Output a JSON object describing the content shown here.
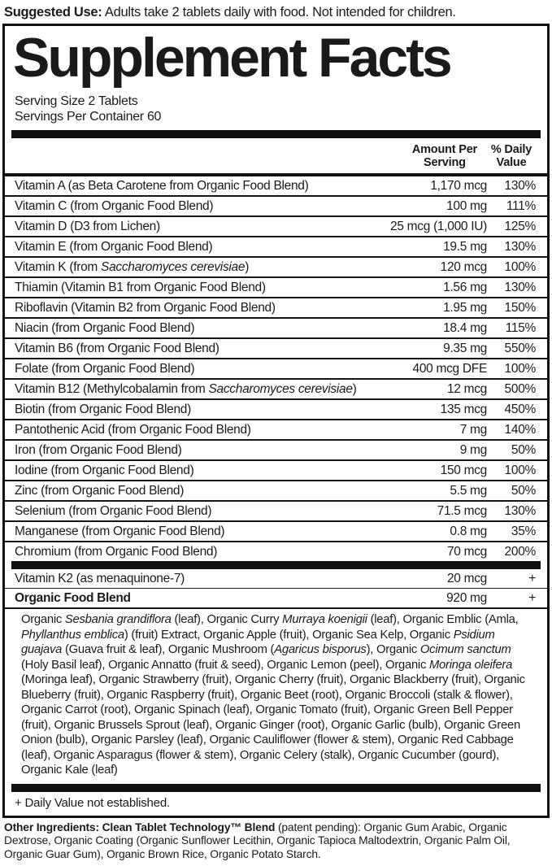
{
  "suggested_use": {
    "label": "Suggested Use:",
    "text": " Adults take 2 tablets daily with food. Not intended for children."
  },
  "panel": {
    "title": "Supplement Facts",
    "serving_size": "Serving Size 2 Tablets",
    "servings_per_container": "Servings Per Container 60"
  },
  "table": {
    "header": {
      "amount_line1": "Amount Per",
      "amount_line2": "Serving",
      "dv_line1": "% Daily",
      "dv_line2": "Value"
    },
    "main_rows": [
      {
        "name": [
          {
            "t": "Vitamin A (as Beta Carotene from Organic Food Blend)"
          }
        ],
        "amount": "1,170 mcg",
        "dv": "130%"
      },
      {
        "name": [
          {
            "t": "Vitamin C (from Organic Food Blend)"
          }
        ],
        "amount": "100 mg",
        "dv": "111%"
      },
      {
        "name": [
          {
            "t": "Vitamin D (D3 from Lichen)"
          }
        ],
        "amount": "25 mcg (1,000 IU)",
        "dv": "125%"
      },
      {
        "name": [
          {
            "t": "Vitamin E (from Organic Food Blend)"
          }
        ],
        "amount": "19.5 mg",
        "dv": "130%"
      },
      {
        "name": [
          {
            "t": "Vitamin K (from "
          },
          {
            "t": "Saccharomyces cerevisiae",
            "i": true
          },
          {
            "t": ")"
          }
        ],
        "amount": "120 mcg",
        "dv": "100%"
      },
      {
        "name": [
          {
            "t": "Thiamin (Vitamin B1 from Organic Food Blend)"
          }
        ],
        "amount": "1.56 mg",
        "dv": "130%"
      },
      {
        "name": [
          {
            "t": "Riboflavin (Vitamin B2 from Organic Food Blend)"
          }
        ],
        "amount": "1.95 mg",
        "dv": "150%"
      },
      {
        "name": [
          {
            "t": "Niacin (from Organic Food Blend)"
          }
        ],
        "amount": "18.4 mg",
        "dv": "115%"
      },
      {
        "name": [
          {
            "t": "Vitamin B6 (from Organic Food Blend)"
          }
        ],
        "amount": "9.35 mg",
        "dv": "550%"
      },
      {
        "name": [
          {
            "t": "Folate (from Organic Food Blend)"
          }
        ],
        "amount": "400 mcg DFE",
        "dv": "100%"
      },
      {
        "name": [
          {
            "t": "Vitamin B12 (Methylcobalamin from "
          },
          {
            "t": "Saccharomyces cerevisiae",
            "i": true
          },
          {
            "t": ")"
          }
        ],
        "amount": "12 mcg",
        "dv": "500%"
      },
      {
        "name": [
          {
            "t": "Biotin (from Organic Food Blend)"
          }
        ],
        "amount": "135 mcg",
        "dv": "450%"
      },
      {
        "name": [
          {
            "t": "Pantothenic Acid (from Organic Food Blend)"
          }
        ],
        "amount": "7 mg",
        "dv": "140%"
      },
      {
        "name": [
          {
            "t": "Iron (from Organic Food Blend)"
          }
        ],
        "amount": "9 mg",
        "dv": "50%"
      },
      {
        "name": [
          {
            "t": "Iodine (from Organic Food Blend)"
          }
        ],
        "amount": "150 mcg",
        "dv": "100%"
      },
      {
        "name": [
          {
            "t": "Zinc (from Organic Food Blend)"
          }
        ],
        "amount": "5.5 mg",
        "dv": "50%"
      },
      {
        "name": [
          {
            "t": "Selenium (from Organic Food Blend)"
          }
        ],
        "amount": "71.5 mcg",
        "dv": "130%"
      },
      {
        "name": [
          {
            "t": "Manganese (from Organic Food Blend)"
          }
        ],
        "amount": "0.8 mg",
        "dv": "35%"
      },
      {
        "name": [
          {
            "t": "Chromium (from Organic Food Blend)"
          }
        ],
        "amount": "70 mcg",
        "dv": "200%"
      }
    ],
    "extra_rows": [
      {
        "name": [
          {
            "t": "Vitamin K2 (as menaquinone-7)"
          }
        ],
        "amount": "20 mcg",
        "dv": "+"
      },
      {
        "name": [
          {
            "t": "Organic Food Blend",
            "b": true
          }
        ],
        "amount": "920 mg",
        "dv": "+"
      }
    ]
  },
  "blend_segments": [
    {
      "t": "Organic "
    },
    {
      "t": "Sesbania grandiflora",
      "i": true
    },
    {
      "t": " (leaf), Organic Curry "
    },
    {
      "t": "Murraya koenigii",
      "i": true
    },
    {
      "t": " (leaf), Organic Emblic (Amla, "
    },
    {
      "t": "Phyllanthus emblica",
      "i": true
    },
    {
      "t": ") (fruit) Extract, Organic Apple (fruit), Organic Sea Kelp, Organic "
    },
    {
      "t": "Psidium guajava",
      "i": true
    },
    {
      "t": " (Guava fruit & leaf), Organic Mushroom ("
    },
    {
      "t": "Agaricus bisporus",
      "i": true
    },
    {
      "t": "), Organic "
    },
    {
      "t": "Ocimum sanctum",
      "i": true
    },
    {
      "t": " (Holy Basil leaf), Organic Annatto (fruit & seed), Organic Lemon (peel), Organic "
    },
    {
      "t": "Moringa oleifera",
      "i": true
    },
    {
      "t": " (Moringa leaf), Organic Strawberry (fruit), Organic Cherry (fruit), Organic Blackberry (fruit), Organic Blueberry (fruit), Organic Raspberry (fruit), Organic Beet (root), Organic Broccoli (stalk & flower), Organic Carrot (root), Organic Spinach (leaf), Organic Tomato (fruit), Organic Green Bell Pepper (fruit), Organic Brussels Sprout (leaf), Organic Ginger (root), Organic Garlic (bulb), Organic Green Onion (bulb), Organic Parsley (leaf), Organic Cauliflower (flower & stem), Organic Red Cabbage (leaf), Organic Asparagus (flower & stem), Organic Celery (stalk), Organic Cucumber (gourd), Organic Kale (leaf)"
    }
  ],
  "footnote": "+ Daily Value not established.",
  "other_ingredients": {
    "lead": "Other Ingredients: Clean Tablet Technology™ Blend",
    "rest": " (patent pending): Organic Gum Arabic, Organic Dextrose, Organic Coating (Organic Sunflower Lecithin, Organic Tapioca Maltodextrin, Organic Palm Oil, Organic Guar Gum), Organic Brown Rice, Organic Potato Starch."
  }
}
